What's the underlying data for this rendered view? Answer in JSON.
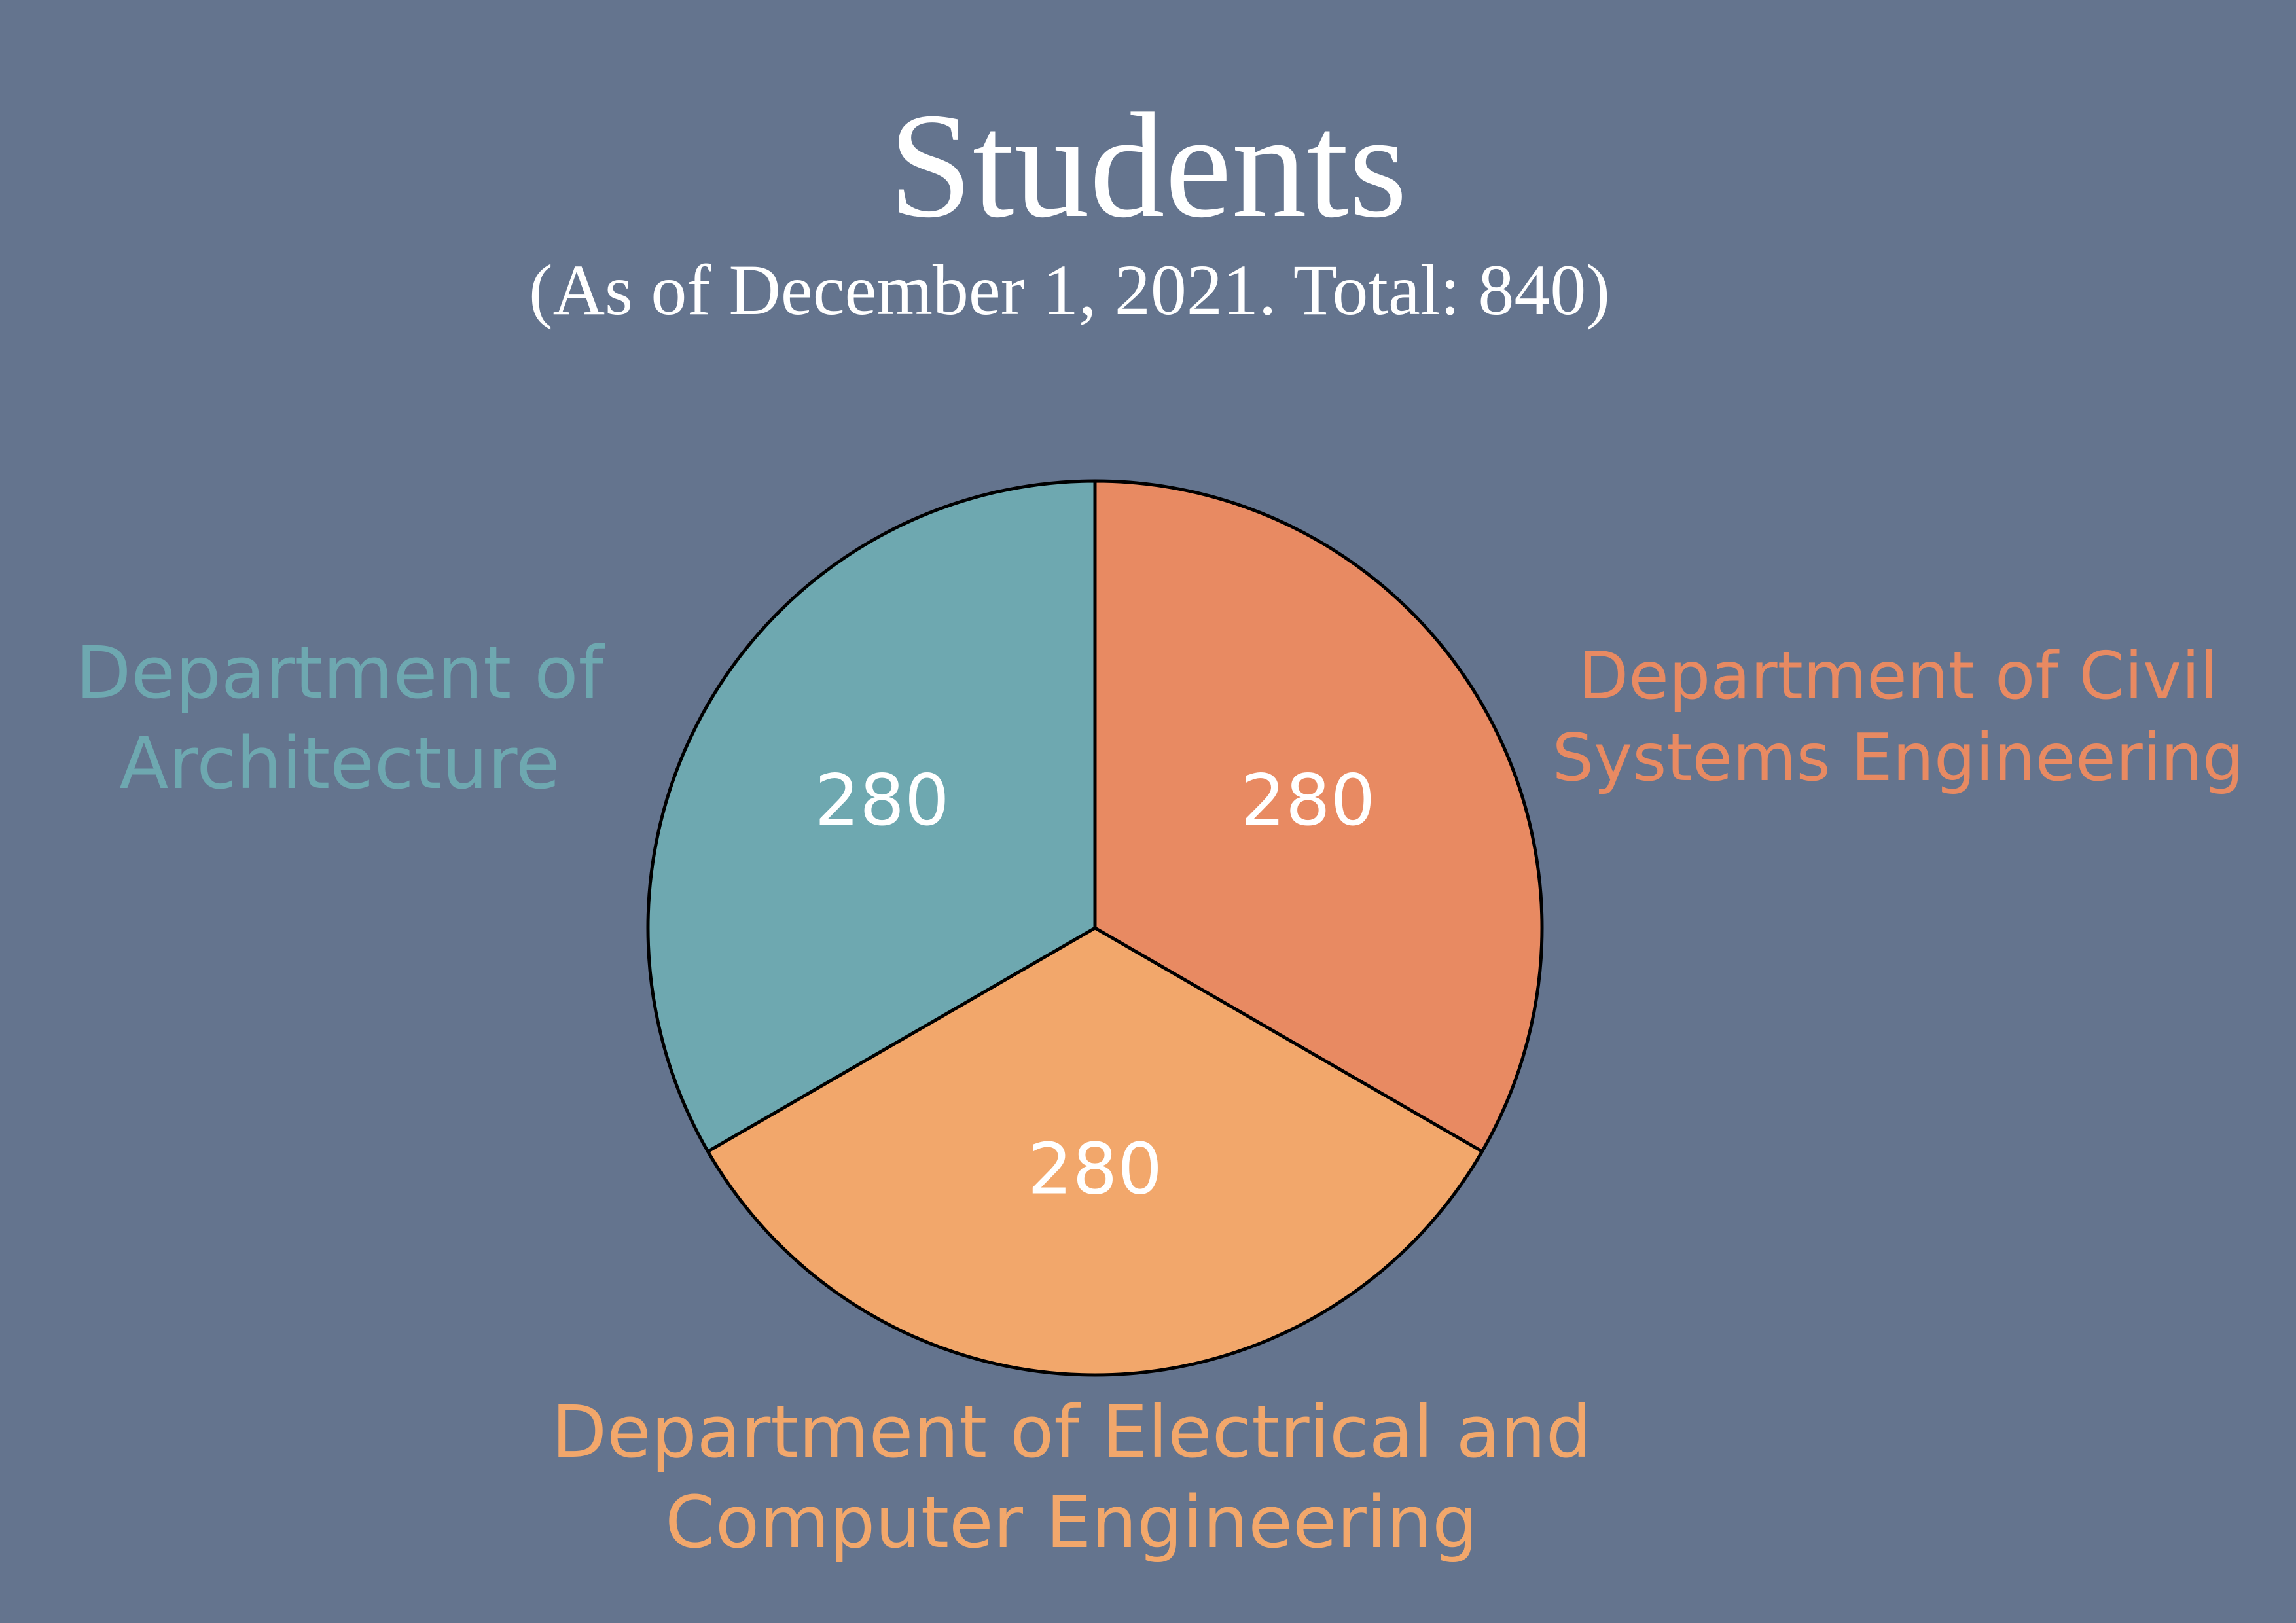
{
  "chart_data": {
    "type": "pie",
    "title": "Students",
    "subtitle": "(As of December 1, 2021. Total: 840)",
    "categories": [
      "Department of Civil Systems Engineering",
      "Department of Electrical and Computer Engineering",
      "Department of Architecture"
    ],
    "values": [
      280,
      280,
      280
    ],
    "colors": [
      "#e88a62",
      "#f2a76b",
      "#6ea8b0"
    ]
  }
}
